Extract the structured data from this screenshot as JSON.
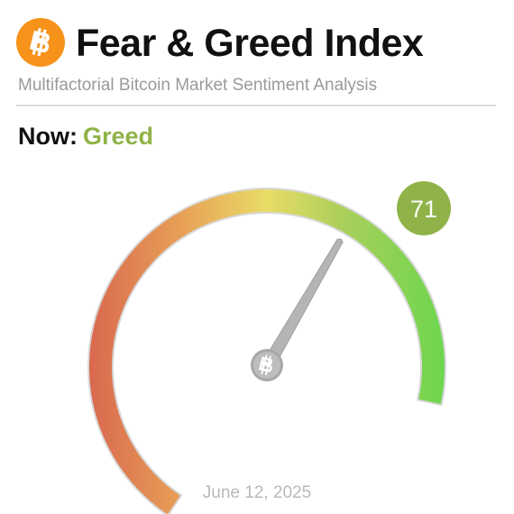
{
  "header": {
    "title": "Fear & Greed Index",
    "subtitle": "Multifactorial Bitcoin Market Sentiment Analysis",
    "logo_icon": "bitcoin-icon"
  },
  "now": {
    "label": "Now:",
    "classification": "Greed"
  },
  "gauge": {
    "value": 71,
    "value_label": "71",
    "min": 0,
    "max": 100,
    "center_icon": "bitcoin-icon"
  },
  "date": "June 12, 2025",
  "colors": {
    "brand_orange": "#f7931a",
    "fear_red": "#d9694f",
    "neutral_yellow": "#e8dc66",
    "greed_green": "#8fc451",
    "extreme_greed_green": "#6dd64e",
    "badge_green": "#8fb348",
    "classification_text": "#8fb348",
    "needle_grey": "#b5b5b5"
  }
}
